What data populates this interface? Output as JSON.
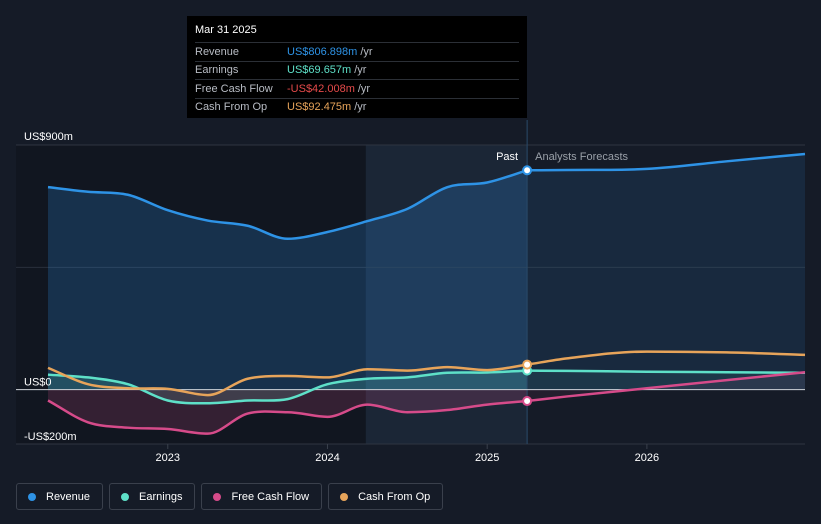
{
  "chart_data": {
    "type": "line",
    "x_unit": "year",
    "xlim": [
      2022.25,
      2026.99
    ],
    "ylim": [
      -200,
      900
    ],
    "y_ticks": [
      {
        "value": 900,
        "label": "US$900m"
      },
      {
        "value": 0,
        "label": "US$0"
      },
      {
        "value": -200,
        "label": "-US$200m"
      }
    ],
    "x_ticks": [
      {
        "value": 2023,
        "label": "2023"
      },
      {
        "value": 2024,
        "label": "2024"
      },
      {
        "value": 2025,
        "label": "2025"
      },
      {
        "value": 2026,
        "label": "2026"
      }
    ],
    "divider_x": 2025.25,
    "highlight_start_x": 2024.24,
    "past_label": "Past",
    "forecast_label": "Analysts Forecasts",
    "series": [
      {
        "name": "Revenue",
        "color": "#2e93e6",
        "area": true,
        "points": [
          [
            2022.25,
            745
          ],
          [
            2022.5,
            728
          ],
          [
            2022.75,
            717
          ],
          [
            2023,
            660
          ],
          [
            2023.25,
            622
          ],
          [
            2023.5,
            603
          ],
          [
            2023.75,
            555
          ],
          [
            2024,
            580
          ],
          [
            2024.25,
            620
          ],
          [
            2024.5,
            665
          ],
          [
            2024.75,
            745
          ],
          [
            2025,
            762
          ],
          [
            2025.25,
            807
          ]
        ],
        "forecast": [
          [
            2025.25,
            807
          ],
          [
            2025.5,
            808
          ],
          [
            2026,
            812
          ],
          [
            2026.5,
            840
          ],
          [
            2026.99,
            867
          ]
        ]
      },
      {
        "name": "Earnings",
        "color": "#5ee0c8",
        "area": true,
        "points": [
          [
            2022.25,
            55
          ],
          [
            2022.5,
            45
          ],
          [
            2022.75,
            20
          ],
          [
            2023,
            -40
          ],
          [
            2023.25,
            -50
          ],
          [
            2023.5,
            -40
          ],
          [
            2023.75,
            -35
          ],
          [
            2024,
            20
          ],
          [
            2024.25,
            40
          ],
          [
            2024.5,
            45
          ],
          [
            2024.75,
            62
          ],
          [
            2025,
            63
          ],
          [
            2025.25,
            70
          ]
        ],
        "forecast": [
          [
            2025.25,
            70
          ],
          [
            2025.5,
            69
          ],
          [
            2026,
            66
          ],
          [
            2026.5,
            64
          ],
          [
            2026.99,
            62
          ]
        ]
      },
      {
        "name": "Free Cash Flow",
        "color": "#d64b8a",
        "area": true,
        "points": [
          [
            2022.25,
            -40
          ],
          [
            2022.5,
            -120
          ],
          [
            2022.75,
            -140
          ],
          [
            2023,
            -145
          ],
          [
            2023.25,
            -162
          ],
          [
            2023.5,
            -88
          ],
          [
            2023.75,
            -83
          ],
          [
            2024,
            -100
          ],
          [
            2024.25,
            -55
          ],
          [
            2024.5,
            -83
          ],
          [
            2024.75,
            -75
          ],
          [
            2025,
            -55
          ],
          [
            2025.25,
            -42
          ]
        ],
        "forecast": [
          [
            2025.25,
            -42
          ],
          [
            2025.5,
            -25
          ],
          [
            2026,
            5
          ],
          [
            2026.5,
            35
          ],
          [
            2026.99,
            64
          ]
        ]
      },
      {
        "name": "Cash From Op",
        "color": "#e7a45a",
        "area": false,
        "points": [
          [
            2022.25,
            80
          ],
          [
            2022.5,
            20
          ],
          [
            2022.75,
            5
          ],
          [
            2023,
            3
          ],
          [
            2023.25,
            -20
          ],
          [
            2023.5,
            40
          ],
          [
            2023.75,
            50
          ],
          [
            2024,
            45
          ],
          [
            2024.25,
            75
          ],
          [
            2024.5,
            70
          ],
          [
            2024.75,
            83
          ],
          [
            2025,
            72
          ],
          [
            2025.25,
            92
          ]
        ],
        "forecast": [
          [
            2025.25,
            92
          ],
          [
            2025.5,
            115
          ],
          [
            2026,
            140
          ],
          [
            2026.5,
            137
          ],
          [
            2026.99,
            128
          ]
        ]
      }
    ]
  },
  "tooltip": {
    "date": "Mar 31 2025",
    "rows": [
      {
        "label": "Revenue",
        "value": "US$806.898m",
        "unit": "/yr",
        "color": "#2e93e6"
      },
      {
        "label": "Earnings",
        "value": "US$69.657m",
        "unit": "/yr",
        "color": "#5ee0c8"
      },
      {
        "label": "Free Cash Flow",
        "value": "-US$42.008m",
        "unit": "/yr",
        "color": "#e64a4a"
      },
      {
        "label": "Cash From Op",
        "value": "US$92.475m",
        "unit": "/yr",
        "color": "#e7a45a"
      }
    ]
  },
  "legend": [
    {
      "label": "Revenue",
      "color": "#2e93e6"
    },
    {
      "label": "Earnings",
      "color": "#5ee0c8"
    },
    {
      "label": "Free Cash Flow",
      "color": "#d64b8a"
    },
    {
      "label": "Cash From Op",
      "color": "#e7a45a"
    }
  ]
}
